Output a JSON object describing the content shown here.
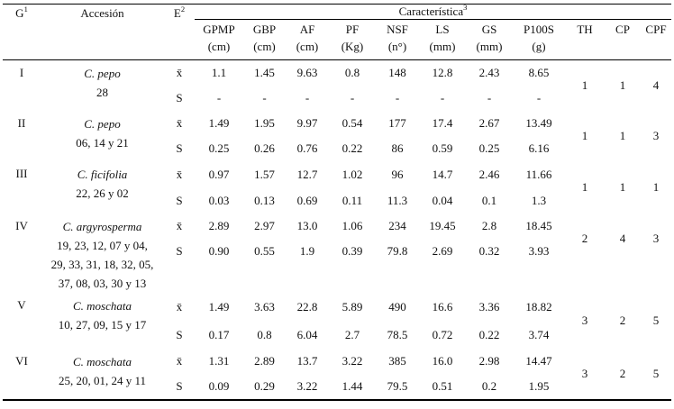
{
  "header": {
    "g_label": "G",
    "g_sup": "1",
    "accession_label": "Accesión",
    "e_label": "E",
    "e_sup": "2",
    "caracteristica_label": "Característica",
    "caracteristica_sup": "3",
    "columns": [
      {
        "name": "GPMP",
        "unit": "(cm)"
      },
      {
        "name": "GBP",
        "unit": "(cm)"
      },
      {
        "name": "AF",
        "unit": "(cm)"
      },
      {
        "name": "PF",
        "unit": "(Kg)"
      },
      {
        "name": "NSF",
        "unit": "(n°)"
      },
      {
        "name": "LS",
        "unit": "(mm)"
      },
      {
        "name": "GS",
        "unit": "(mm)"
      },
      {
        "name": "P100S",
        "unit": "(g)"
      },
      {
        "name": "TH",
        "unit": ""
      },
      {
        "name": "CP",
        "unit": ""
      },
      {
        "name": "CPF",
        "unit": ""
      }
    ]
  },
  "row_labels": {
    "mean": "x̄",
    "sd": "S"
  },
  "groups": [
    {
      "g": "I",
      "species": "C. pepo",
      "acc_lines": [
        "28"
      ],
      "mean": [
        "1.1",
        "1.45",
        "9.63",
        "0.8",
        "148",
        "12.8",
        "2.43",
        "8.65"
      ],
      "sd": [
        "-",
        "-",
        "-",
        "-",
        "-",
        "-",
        "-",
        "-"
      ],
      "th": "1",
      "cp": "1",
      "cpf": "4"
    },
    {
      "g": "II",
      "species": "C. pepo",
      "acc_lines": [
        "06, 14 y 21"
      ],
      "mean": [
        "1.49",
        "1.95",
        "9.97",
        "0.54",
        "177",
        "17.4",
        "2.67",
        "13.49"
      ],
      "sd": [
        "0.25",
        "0.26",
        "0.76",
        "0.22",
        "86",
        "0.59",
        "0.25",
        "6.16"
      ],
      "th": "1",
      "cp": "1",
      "cpf": "3"
    },
    {
      "g": "III",
      "species": "C. ficifolia",
      "acc_lines": [
        "22, 26 y 02"
      ],
      "mean": [
        "0.97",
        "1.57",
        "12.7",
        "1.02",
        "96",
        "14.7",
        "2.46",
        "11.66"
      ],
      "sd": [
        "0.03",
        "0.13",
        "0.69",
        "0.11",
        "11.3",
        "0.04",
        "0.1",
        "1.3"
      ],
      "th": "1",
      "cp": "1",
      "cpf": "1"
    },
    {
      "g": "IV",
      "species": "C. argyrosperma",
      "acc_lines": [
        "19, 23, 12, 07 y 04,",
        "29, 33, 31, 18, 32, 05,",
        "37, 08, 03, 30 y 13"
      ],
      "mean": [
        "2.89",
        "2.97",
        "13.0",
        "1.06",
        "234",
        "19.45",
        "2.8",
        "18.45"
      ],
      "sd": [
        "0.90",
        "0.55",
        "1.9",
        "0.39",
        "79.8",
        "2.69",
        "0.32",
        "3.93"
      ],
      "th": "2",
      "cp": "4",
      "cpf": "3"
    },
    {
      "g": "V",
      "species": "C. moschata",
      "acc_lines": [
        "10, 27, 09, 15 y 17"
      ],
      "mean": [
        "1.49",
        "3.63",
        "22.8",
        "5.89",
        "490",
        "16.6",
        "3.36",
        "18.82"
      ],
      "sd": [
        "0.17",
        "0.8",
        "6.04",
        "2.7",
        "78.5",
        "0.72",
        "0.22",
        "3.74"
      ],
      "th": "3",
      "cp": "2",
      "cpf": "5"
    },
    {
      "g": "VI",
      "species": "C. moschata",
      "acc_lines": [
        "25, 20, 01, 24 y 11"
      ],
      "mean": [
        "1.31",
        "2.89",
        "13.7",
        "3.22",
        "385",
        "16.0",
        "2.98",
        "14.47"
      ],
      "sd": [
        "0.09",
        "0.29",
        "3.22",
        "1.44",
        "79.5",
        "0.51",
        "0.2",
        "1.95"
      ],
      "th": "3",
      "cp": "2",
      "cpf": "5"
    }
  ]
}
